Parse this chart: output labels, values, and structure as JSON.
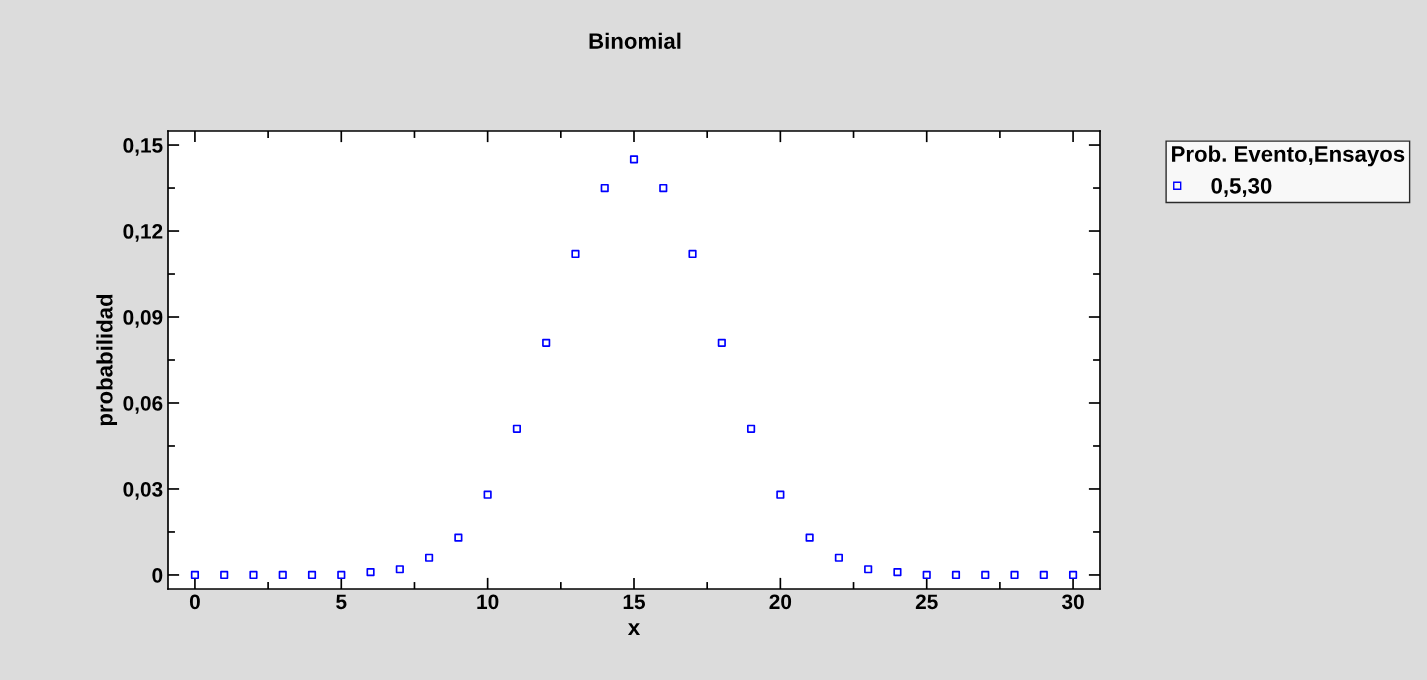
{
  "chart_data": {
    "type": "scatter",
    "title": "Binomial",
    "xlabel": "x",
    "ylabel": "probabilidad",
    "legend_title": "Prob. Evento,Ensayos",
    "x": [
      0,
      1,
      2,
      3,
      4,
      5,
      6,
      7,
      8,
      9,
      10,
      11,
      12,
      13,
      14,
      15,
      16,
      17,
      18,
      19,
      20,
      21,
      22,
      23,
      24,
      25,
      26,
      27,
      28,
      29,
      30
    ],
    "series": [
      {
        "name": "0,5,30",
        "color": "#0000ff",
        "values": [
          0,
          0,
          0,
          0,
          0,
          0,
          0.001,
          0.002,
          0.006,
          0.013,
          0.028,
          0.051,
          0.081,
          0.112,
          0.135,
          0.145,
          0.135,
          0.112,
          0.081,
          0.051,
          0.028,
          0.013,
          0.006,
          0.002,
          0.001,
          0,
          0,
          0,
          0,
          0,
          0
        ]
      }
    ],
    "xlim": [
      -0.92,
      30.92
    ],
    "xticks": [
      0,
      5,
      10,
      15,
      20,
      25,
      30
    ],
    "ylim": [
      -0.0049,
      0.1549
    ],
    "yticks": [
      {
        "value": 0,
        "label": "0"
      },
      {
        "value": 0.03,
        "label": "0,03"
      },
      {
        "value": 0.06,
        "label": "0,06"
      },
      {
        "value": 0.09,
        "label": "0,09"
      },
      {
        "value": 0.12,
        "label": "0,12"
      },
      {
        "value": 0.15,
        "label": "0,15"
      }
    ],
    "marker": "square",
    "grid": false,
    "legend": "top right"
  }
}
